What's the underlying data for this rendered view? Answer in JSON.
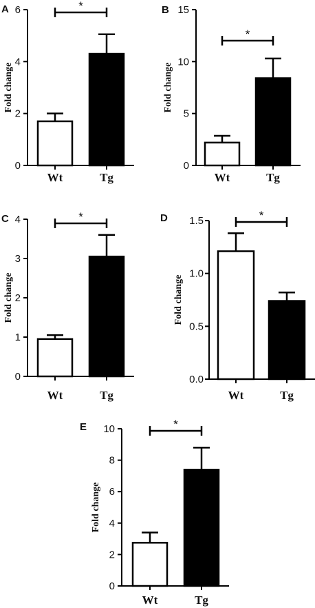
{
  "chart_data": [
    {
      "panel": "A",
      "type": "bar",
      "categories": [
        "Wt",
        "Tg"
      ],
      "values": [
        1.7,
        4.3
      ],
      "error": [
        0.3,
        0.75
      ],
      "fills": [
        "#ffffff",
        "#000000"
      ],
      "ylabel": "Fold change",
      "ylim": [
        0,
        6
      ],
      "yticks": [
        "0",
        "2",
        "4",
        "6"
      ],
      "significance": "*"
    },
    {
      "panel": "B",
      "type": "bar",
      "categories": [
        "Wt",
        "Tg"
      ],
      "values": [
        2.2,
        8.4
      ],
      "error": [
        0.65,
        1.9
      ],
      "fills": [
        "#ffffff",
        "#000000"
      ],
      "ylabel": "Fold change",
      "ylim": [
        0,
        15
      ],
      "yticks": [
        "0",
        "5",
        "10",
        "15"
      ],
      "significance": "*"
    },
    {
      "panel": "C",
      "type": "bar",
      "categories": [
        "Wt",
        "Tg"
      ],
      "values": [
        0.95,
        3.05
      ],
      "error": [
        0.1,
        0.55
      ],
      "fills": [
        "#ffffff",
        "#000000"
      ],
      "ylabel": "Fold change",
      "ylim": [
        0,
        4
      ],
      "yticks": [
        "0",
        "1",
        "2",
        "3",
        "4"
      ],
      "significance": "*"
    },
    {
      "panel": "D",
      "type": "bar",
      "categories": [
        "Wt",
        "Tg"
      ],
      "values": [
        1.21,
        0.74
      ],
      "error": [
        0.17,
        0.08
      ],
      "fills": [
        "#ffffff",
        "#000000"
      ],
      "ylabel": "Fold change",
      "ylim": [
        0,
        1.5
      ],
      "yticks": [
        "0.0",
        "0.5",
        "1.0",
        "1.5"
      ],
      "significance": "*"
    },
    {
      "panel": "E",
      "type": "bar",
      "categories": [
        "Wt",
        "Tg"
      ],
      "values": [
        2.75,
        7.4
      ],
      "error": [
        0.65,
        1.4
      ],
      "fills": [
        "#ffffff",
        "#000000"
      ],
      "ylabel": "Fold change",
      "ylim": [
        0,
        10
      ],
      "yticks": [
        "0",
        "2",
        "4",
        "6",
        "8",
        "10"
      ],
      "significance": "*"
    }
  ]
}
